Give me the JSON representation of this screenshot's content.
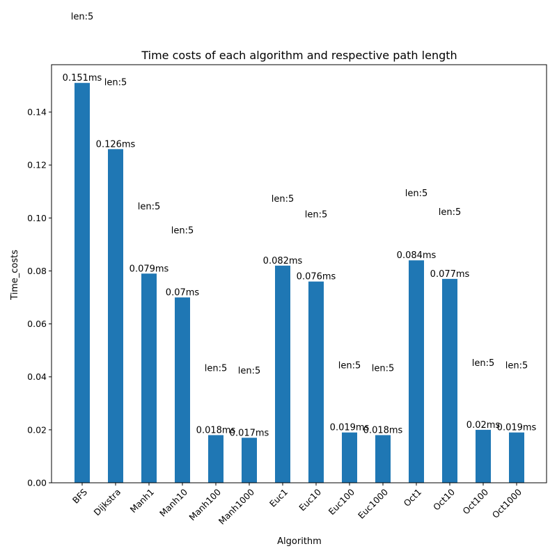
{
  "chart_data": {
    "type": "bar",
    "title": "Time costs of each algorithm and respective path length",
    "xlabel": "Algorithm",
    "ylabel": "Time_costs",
    "ylim": [
      0,
      0.15788
    ],
    "yticks": [
      0.0,
      0.02,
      0.04,
      0.06,
      0.08,
      0.1,
      0.12,
      0.14
    ],
    "ytick_labels": [
      "0.00",
      "0.02",
      "0.04",
      "0.06",
      "0.08",
      "0.10",
      "0.12",
      "0.14"
    ],
    "grid": false,
    "bar_color": "#1f77b4",
    "categories": [
      "BFS",
      "Dijkstra",
      "Manh1",
      "Manh10",
      "Manh100",
      "Manh1000",
      "Euc1",
      "Euc10",
      "Euc100",
      "Euc1000",
      "Oct1",
      "Oct10",
      "Oct100",
      "Oct1000"
    ],
    "values": [
      0.151,
      0.126,
      0.079,
      0.07,
      0.018,
      0.017,
      0.082,
      0.076,
      0.019,
      0.018,
      0.084,
      0.077,
      0.02,
      0.019
    ],
    "value_labels": [
      "0.151ms",
      "0.126ms",
      "0.079ms",
      "0.07ms",
      "0.018ms",
      "0.017ms",
      "0.082ms",
      "0.076ms",
      "0.019ms",
      "0.018ms",
      "0.084ms",
      "0.077ms",
      "0.02ms",
      "0.019ms"
    ],
    "length_labels": [
      "len:5",
      "len:5",
      "len:5",
      "len:5",
      "len:5",
      "len:5",
      "len:5",
      "len:5",
      "len:5",
      "len:5",
      "len:5",
      "len:5",
      "len:5",
      "len:5"
    ],
    "length_label_values": [
      0.1763,
      0.1515,
      0.1045,
      0.0955,
      0.0435,
      0.0425,
      0.1075,
      0.1015,
      0.0445,
      0.0435,
      0.1095,
      0.1025,
      0.0455,
      0.0445
    ]
  }
}
